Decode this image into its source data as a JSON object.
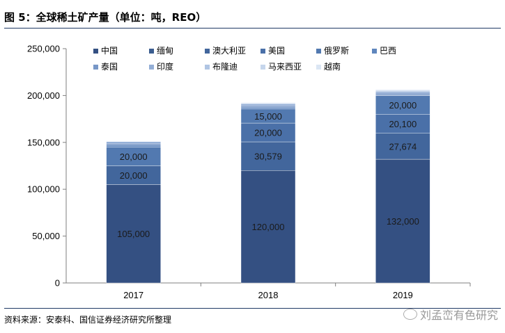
{
  "header": {
    "title": "图 5：全球稀土矿产量（单位：吨，REO）"
  },
  "footer": {
    "source": "资料来源：安泰科、国信证券经济研究所整理",
    "watermark": "刘孟峦有色研究"
  },
  "chart_data": {
    "type": "bar",
    "stacked": true,
    "categories": [
      "2017",
      "2018",
      "2019"
    ],
    "ylim": [
      0,
      250000
    ],
    "yticks": [
      "0",
      "50,000",
      "100,000",
      "150,000",
      "200,000",
      "250,000"
    ],
    "legend_position": "top",
    "series": [
      {
        "name": "中国",
        "values": [
          105000,
          120000,
          132000
        ],
        "labels": [
          "105,000",
          "120,000",
          "132,000"
        ],
        "color": "#345082"
      },
      {
        "name": "缅甸",
        "values": [
          0,
          0,
          0
        ],
        "labels": [
          null,
          null,
          null
        ],
        "color": "#3b5d8f"
      },
      {
        "name": "澳大利亚",
        "values": [
          20000,
          30579,
          27674
        ],
        "labels": [
          "20,000",
          "30,579",
          "27,674"
        ],
        "color": "#42669c"
      },
      {
        "name": "美国",
        "values": [
          0,
          20000,
          20100
        ],
        "labels": [
          null,
          "20,000",
          "20,100"
        ],
        "color": "#4a70a8"
      },
      {
        "name": "俄罗斯",
        "values": [
          20000,
          15000,
          20000
        ],
        "labels": [
          "20,000",
          "15,000",
          "20,000"
        ],
        "color": "#5279b0"
      },
      {
        "name": "巴西",
        "values": [
          2000,
          2000,
          1000
        ],
        "labels": [
          null,
          null,
          null
        ],
        "color": "#5f86bd"
      },
      {
        "name": "泰国",
        "values": [
          2000,
          1500,
          1800
        ],
        "labels": [
          null,
          null,
          null
        ],
        "color": "#7797c7"
      },
      {
        "name": "印度",
        "values": [
          1800,
          1800,
          1800
        ],
        "labels": [
          null,
          null,
          null
        ],
        "color": "#93aed6"
      },
      {
        "name": "布隆迪",
        "values": [
          0,
          1000,
          1000
        ],
        "labels": [
          null,
          null,
          null
        ],
        "color": "#b0c5e3"
      },
      {
        "name": "马来西亚",
        "values": [
          300,
          200,
          200
        ],
        "labels": [
          null,
          null,
          null
        ],
        "color": "#c6d6ec"
      },
      {
        "name": "越南",
        "values": [
          400,
          400,
          900
        ],
        "labels": [
          null,
          null,
          null
        ],
        "color": "#dbe6f4"
      }
    ]
  }
}
